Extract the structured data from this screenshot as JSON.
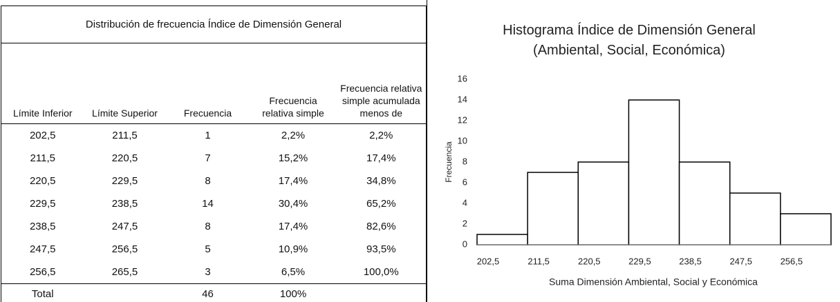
{
  "table": {
    "title": "Distribución de frecuencia Índice de Dimensión General",
    "headers": [
      "Límite  Inferior",
      "Límite Superior",
      "Frecuencia",
      "Frecuencia relativa simple",
      "Frecuencia relativa simple acumulada menos de"
    ],
    "rows": [
      [
        "202,5",
        "211,5",
        "1",
        "2,2%",
        "2,2%"
      ],
      [
        "211,5",
        "220,5",
        "7",
        "15,2%",
        "17,4%"
      ],
      [
        "220,5",
        "229,5",
        "8",
        "17,4%",
        "34,8%"
      ],
      [
        "229,5",
        "238,5",
        "14",
        "30,4%",
        "65,2%"
      ],
      [
        "238,5",
        "247,5",
        "8",
        "17,4%",
        "82,6%"
      ],
      [
        "247,5",
        "256,5",
        "5",
        "10,9%",
        "93,5%"
      ],
      [
        "256,5",
        "265,5",
        "3",
        "6,5%",
        "100,0%"
      ]
    ],
    "total": {
      "label": "Total",
      "frequency": "46",
      "relative": "100%"
    }
  },
  "chart_data": {
    "type": "histogram",
    "title": "Histograma Índice de Dimensión General (Ambiental, Social, Económica)",
    "x_label": "Suma Dimensión Ambiental, Social y Económica",
    "y_label": "Frecuencia",
    "bins": [
      202.5,
      211.5,
      220.5,
      229.5,
      238.5,
      247.5,
      256.5,
      265.5
    ],
    "counts": [
      1,
      7,
      8,
      14,
      8,
      5,
      3
    ],
    "color": "#ffffff",
    "edge_color": "#000000",
    "xlim": [
      202.5,
      265.5
    ],
    "xticks": [
      {
        "value": 202.5,
        "label": "202,5"
      },
      {
        "value": 211.5,
        "label": "211,5"
      },
      {
        "value": 220.5,
        "label": "220,5"
      },
      {
        "value": 229.5,
        "label": "229,5"
      },
      {
        "value": 238.5,
        "label": "238,5"
      },
      {
        "value": 247.5,
        "label": "247,5"
      },
      {
        "value": 256.5,
        "label": "256,5"
      }
    ],
    "ylim": [
      0,
      16
    ],
    "yticks": [
      0,
      2,
      4,
      6,
      8,
      10,
      12,
      14,
      16
    ],
    "grid": false
  }
}
